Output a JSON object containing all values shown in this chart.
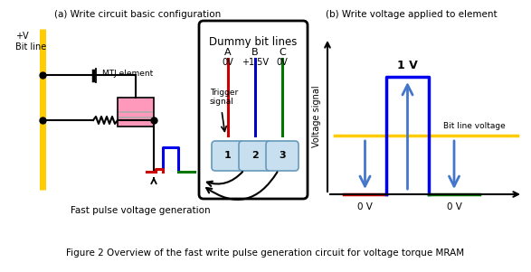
{
  "fig_width": 5.87,
  "fig_height": 3.01,
  "dpi": 100,
  "bg_color": "#ffffff",
  "title_a": "(a) Write circuit basic configuration",
  "title_b": "(b) Write voltage applied to element",
  "caption": "Figure 2 Overview of the fast write pulse generation circuit for voltage torque MRAM",
  "dummy_box_label": "Dummy bit lines",
  "bit_labels": [
    "A",
    "B",
    "C"
  ],
  "bit_voltages": [
    "0V",
    "+1.5V",
    "0V"
  ],
  "bit_colors": [
    "#cc0000",
    "#0000cc",
    "#007700"
  ],
  "trigger_label": "Trigger\nsignal",
  "fast_pulse_label": "Fast pulse voltage generation",
  "voltage_ylabel": "Voltage signal",
  "voltage_1v_label": "1 V",
  "voltage_0v_label1": "0 V",
  "voltage_0v_label2": "0 V",
  "bitline_voltage_label": "Bit line voltage",
  "pulse_blue_color": "#0000ee",
  "pulse_red_color": "#cc0000",
  "pulse_green_color": "#007700",
  "arrow_color": "#4477cc",
  "yellow_color": "#ffcc00",
  "pink_color": "#ff99bb",
  "shield_fill": "#c8dff0",
  "shield_edge": "#6699bb"
}
